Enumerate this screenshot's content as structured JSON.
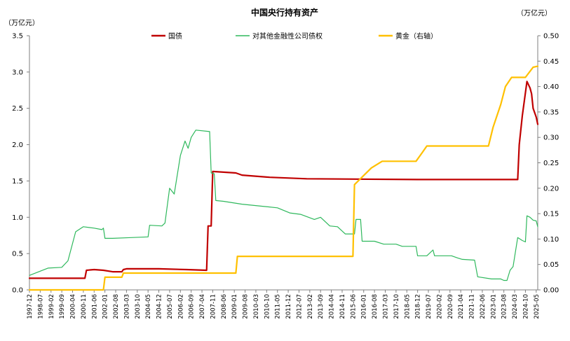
{
  "chart_data": {
    "type": "line",
    "title": "中国央行持有资产",
    "y_left_unit": "（万亿元）",
    "y_right_unit": "（万亿元）",
    "ylim_left": [
      0,
      3.5
    ],
    "ylim_right": [
      0,
      0.5
    ],
    "y_left_ticks": [
      "0.0",
      "0.5",
      "1.0",
      "1.5",
      "2.0",
      "2.5",
      "3.0",
      "3.5"
    ],
    "y_right_ticks": [
      "0.00",
      "0.05",
      "0.10",
      "0.15",
      "0.20",
      "0.25",
      "0.30",
      "0.35",
      "0.40",
      "0.45",
      "0.50"
    ],
    "x_ticks": [
      "1997-12",
      "1998-07",
      "1999-02",
      "1999-09",
      "2000-04",
      "2000-11",
      "2001-06",
      "2002-01",
      "2002-08",
      "2003-03",
      "2003-10",
      "2004-05",
      "2004-12",
      "2005-07",
      "2006-02",
      "2006-09",
      "2007-04",
      "2007-11",
      "2008-06",
      "2009-01",
      "2009-08",
      "2010-03",
      "2010-10",
      "2011-05",
      "2011-12",
      "2012-07",
      "2013-02",
      "2013-09",
      "2014-04",
      "2014-11",
      "2015-06",
      "2016-01",
      "2016-08",
      "2017-03",
      "2017-10",
      "2018-05",
      "2018-12",
      "2019-07",
      "2020-02",
      "2020-09",
      "2021-04",
      "2021-11",
      "2022-06",
      "2023-01",
      "2023-08",
      "2024-03",
      "2024-10",
      "2025-05"
    ],
    "legend_position": "top",
    "grid": false,
    "series": [
      {
        "name": "国债",
        "axis": "left",
        "color": "#C00000",
        "points": [
          [
            "1997-12",
            0.16
          ],
          [
            "2000-12",
            0.16
          ],
          [
            "2001-01",
            0.27
          ],
          [
            "2001-06",
            0.28
          ],
          [
            "2001-12",
            0.27
          ],
          [
            "2002-06",
            0.25
          ],
          [
            "2002-12",
            0.25
          ],
          [
            "2003-01",
            0.28
          ],
          [
            "2003-03",
            0.29
          ],
          [
            "2004-12",
            0.29
          ],
          [
            "2006-06",
            0.28
          ],
          [
            "2007-07",
            0.27
          ],
          [
            "2007-08",
            0.88
          ],
          [
            "2007-10",
            0.88
          ],
          [
            "2007-11",
            1.63
          ],
          [
            "2009-02",
            1.61
          ],
          [
            "2009-06",
            1.58
          ],
          [
            "2010-12",
            1.55
          ],
          [
            "2012-12",
            1.53
          ],
          [
            "2018-12",
            1.52
          ],
          [
            "2024-05",
            1.52
          ],
          [
            "2024-06",
            2.0
          ],
          [
            "2024-08",
            2.4
          ],
          [
            "2024-11",
            2.87
          ],
          [
            "2025-01",
            2.78
          ],
          [
            "2025-02",
            2.7
          ],
          [
            "2025-03",
            2.5
          ],
          [
            "2025-05",
            2.38
          ],
          [
            "2025-06",
            2.28
          ]
        ]
      },
      {
        "name": "对其他金融性公司债权",
        "axis": "left",
        "color": "#2EB85C",
        "points": [
          [
            "1997-12",
            0.2
          ],
          [
            "1998-12",
            0.3
          ],
          [
            "1999-09",
            0.31
          ],
          [
            "2000-01",
            0.4
          ],
          [
            "2000-06",
            0.8
          ],
          [
            "2000-11",
            0.87
          ],
          [
            "2001-06",
            0.85
          ],
          [
            "2001-11",
            0.83
          ],
          [
            "2001-12",
            0.85
          ],
          [
            "2002-01",
            0.71
          ],
          [
            "2002-06",
            0.71
          ],
          [
            "2003-06",
            0.72
          ],
          [
            "2004-05",
            0.73
          ],
          [
            "2004-06",
            0.89
          ],
          [
            "2005-02",
            0.88
          ],
          [
            "2005-04",
            0.92
          ],
          [
            "2005-07",
            1.4
          ],
          [
            "2005-10",
            1.32
          ],
          [
            "2006-02",
            1.85
          ],
          [
            "2006-05",
            2.05
          ],
          [
            "2006-07",
            1.95
          ],
          [
            "2006-09",
            2.1
          ],
          [
            "2006-12",
            2.2
          ],
          [
            "2007-09",
            2.18
          ],
          [
            "2007-10",
            1.61
          ],
          [
            "2007-12",
            1.6
          ],
          [
            "2008-01",
            1.23
          ],
          [
            "2008-06",
            1.22
          ],
          [
            "2009-06",
            1.18
          ],
          [
            "2011-05",
            1.13
          ],
          [
            "2012-01",
            1.06
          ],
          [
            "2012-08",
            1.04
          ],
          [
            "2013-05",
            0.97
          ],
          [
            "2013-09",
            1.0
          ],
          [
            "2014-03",
            0.88
          ],
          [
            "2014-08",
            0.87
          ],
          [
            "2015-01",
            0.77
          ],
          [
            "2015-07",
            0.77
          ],
          [
            "2015-08",
            0.97
          ],
          [
            "2015-11",
            0.97
          ],
          [
            "2015-12",
            0.67
          ],
          [
            "2016-08",
            0.67
          ],
          [
            "2017-02",
            0.63
          ],
          [
            "2017-10",
            0.63
          ],
          [
            "2018-02",
            0.6
          ],
          [
            "2018-11",
            0.6
          ],
          [
            "2018-12",
            0.47
          ],
          [
            "2019-06",
            0.47
          ],
          [
            "2019-10",
            0.55
          ],
          [
            "2019-11",
            0.47
          ],
          [
            "2020-10",
            0.47
          ],
          [
            "2021-02",
            0.44
          ],
          [
            "2021-05",
            0.42
          ],
          [
            "2022-01",
            0.41
          ],
          [
            "2022-03",
            0.18
          ],
          [
            "2022-12",
            0.15
          ],
          [
            "2023-06",
            0.15
          ],
          [
            "2023-08",
            0.13
          ],
          [
            "2023-10",
            0.13
          ],
          [
            "2023-12",
            0.27
          ],
          [
            "2024-02",
            0.32
          ],
          [
            "2024-05",
            0.72
          ],
          [
            "2024-08",
            0.68
          ],
          [
            "2024-10",
            0.66
          ],
          [
            "2024-11",
            1.02
          ],
          [
            "2025-01",
            1.0
          ],
          [
            "2025-03",
            0.96
          ],
          [
            "2025-05",
            0.95
          ],
          [
            "2025-06",
            0.87
          ]
        ]
      },
      {
        "name": "黄金（右轴）",
        "axis": "right",
        "color": "#FFC000",
        "points": [
          [
            "1997-12",
            0.0
          ],
          [
            "2001-12",
            0.0
          ],
          [
            "2002-01",
            0.025
          ],
          [
            "2002-12",
            0.025
          ],
          [
            "2003-01",
            0.033
          ],
          [
            "2009-02",
            0.033
          ],
          [
            "2009-03",
            0.066
          ],
          [
            "2015-06",
            0.066
          ],
          [
            "2015-07",
            0.207
          ],
          [
            "2016-01",
            0.225
          ],
          [
            "2016-06",
            0.24
          ],
          [
            "2017-01",
            0.253
          ],
          [
            "2018-11",
            0.253
          ],
          [
            "2019-03",
            0.27
          ],
          [
            "2019-06",
            0.283
          ],
          [
            "2022-10",
            0.283
          ],
          [
            "2023-01",
            0.32
          ],
          [
            "2023-06",
            0.365
          ],
          [
            "2023-09",
            0.4
          ],
          [
            "2024-01",
            0.418
          ],
          [
            "2024-10",
            0.418
          ],
          [
            "2025-01",
            0.43
          ],
          [
            "2025-03",
            0.438
          ],
          [
            "2025-06",
            0.44
          ]
        ]
      }
    ]
  }
}
